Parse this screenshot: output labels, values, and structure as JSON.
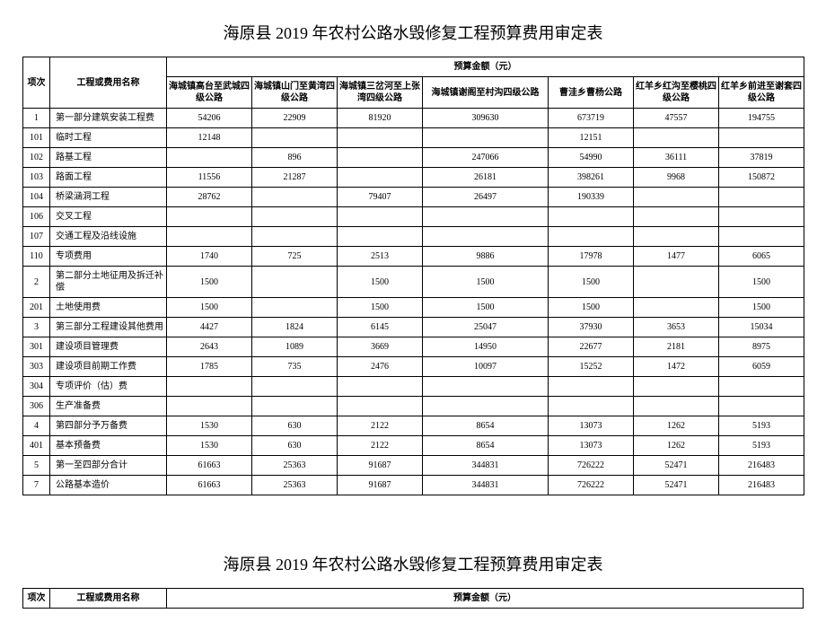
{
  "title": "海原县 2019 年农村公路水毁修复工程预算费用审定表",
  "header": {
    "idx": "项次",
    "name": "工程或费用名称",
    "amount": "预算金额（元）"
  },
  "columns": [
    "海城镇高台至武城四级公路",
    "海城镇山门至黄湾四级公路",
    "海城镇三岔河至上张湾四级公路",
    "海城镇谢阁至村沟四级公路",
    "曹洼乡曹杨公路",
    "红羊乡红沟至樱桃四级公路",
    "红羊乡前进至谢套四级公路"
  ],
  "rows": [
    {
      "idx": "1",
      "name": "第一部分建筑安装工程费",
      "d": [
        "54206",
        "22909",
        "81920",
        "309630",
        "673719",
        "47557",
        "194755"
      ]
    },
    {
      "idx": "101",
      "name": "临时工程",
      "d": [
        "12148",
        "",
        "",
        "",
        "12151",
        "",
        ""
      ]
    },
    {
      "idx": "102",
      "name": "路基工程",
      "d": [
        "",
        "896",
        "",
        "247066",
        "54990",
        "36111",
        "37819"
      ]
    },
    {
      "idx": "103",
      "name": "路面工程",
      "d": [
        "11556",
        "21287",
        "",
        "26181",
        "398261",
        "9968",
        "150872"
      ]
    },
    {
      "idx": "104",
      "name": "桥梁涵洞工程",
      "d": [
        "28762",
        "",
        "79407",
        "26497",
        "190339",
        "",
        ""
      ]
    },
    {
      "idx": "106",
      "name": "交叉工程",
      "d": [
        "",
        "",
        "",
        "",
        "",
        "",
        ""
      ]
    },
    {
      "idx": "107",
      "name": "交通工程及沿线设施",
      "d": [
        "",
        "",
        "",
        "",
        "",
        "",
        ""
      ]
    },
    {
      "idx": "110",
      "name": "专项费用",
      "d": [
        "1740",
        "725",
        "2513",
        "9886",
        "17978",
        "1477",
        "6065"
      ]
    },
    {
      "idx": "2",
      "name": "第二部分土地征用及拆迁补偿",
      "d": [
        "1500",
        "",
        "1500",
        "1500",
        "1500",
        "",
        "1500"
      ]
    },
    {
      "idx": "201",
      "name": "土地使用费",
      "d": [
        "1500",
        "",
        "1500",
        "1500",
        "1500",
        "",
        "1500"
      ]
    },
    {
      "idx": "3",
      "name": "第三部分工程建设其他费用",
      "d": [
        "4427",
        "1824",
        "6145",
        "25047",
        "37930",
        "3653",
        "15034"
      ]
    },
    {
      "idx": "301",
      "name": "建设项目管理费",
      "d": [
        "2643",
        "1089",
        "3669",
        "14950",
        "22677",
        "2181",
        "8975"
      ]
    },
    {
      "idx": "303",
      "name": "建设项目前期工作费",
      "d": [
        "1785",
        "735",
        "2476",
        "10097",
        "15252",
        "1472",
        "6059"
      ]
    },
    {
      "idx": "304",
      "name": "专项评价（估）费",
      "d": [
        "",
        "",
        "",
        "",
        "",
        "",
        ""
      ]
    },
    {
      "idx": "306",
      "name": "生产准备费",
      "d": [
        "",
        "",
        "",
        "",
        "",
        "",
        ""
      ]
    },
    {
      "idx": "4",
      "name": "第四部分予万备费",
      "d": [
        "1530",
        "630",
        "2122",
        "8654",
        "13073",
        "1262",
        "5193"
      ]
    },
    {
      "idx": "401",
      "name": "基本预备费",
      "d": [
        "1530",
        "630",
        "2122",
        "8654",
        "13073",
        "1262",
        "5193"
      ]
    },
    {
      "idx": "5",
      "name": "第一至四部分合计",
      "d": [
        "61663",
        "25363",
        "91687",
        "344831",
        "726222",
        "52471",
        "216483"
      ]
    },
    {
      "idx": "7",
      "name": "公路基本造价",
      "d": [
        "61663",
        "25363",
        "91687",
        "344831",
        "726222",
        "52471",
        "216483"
      ]
    }
  ]
}
